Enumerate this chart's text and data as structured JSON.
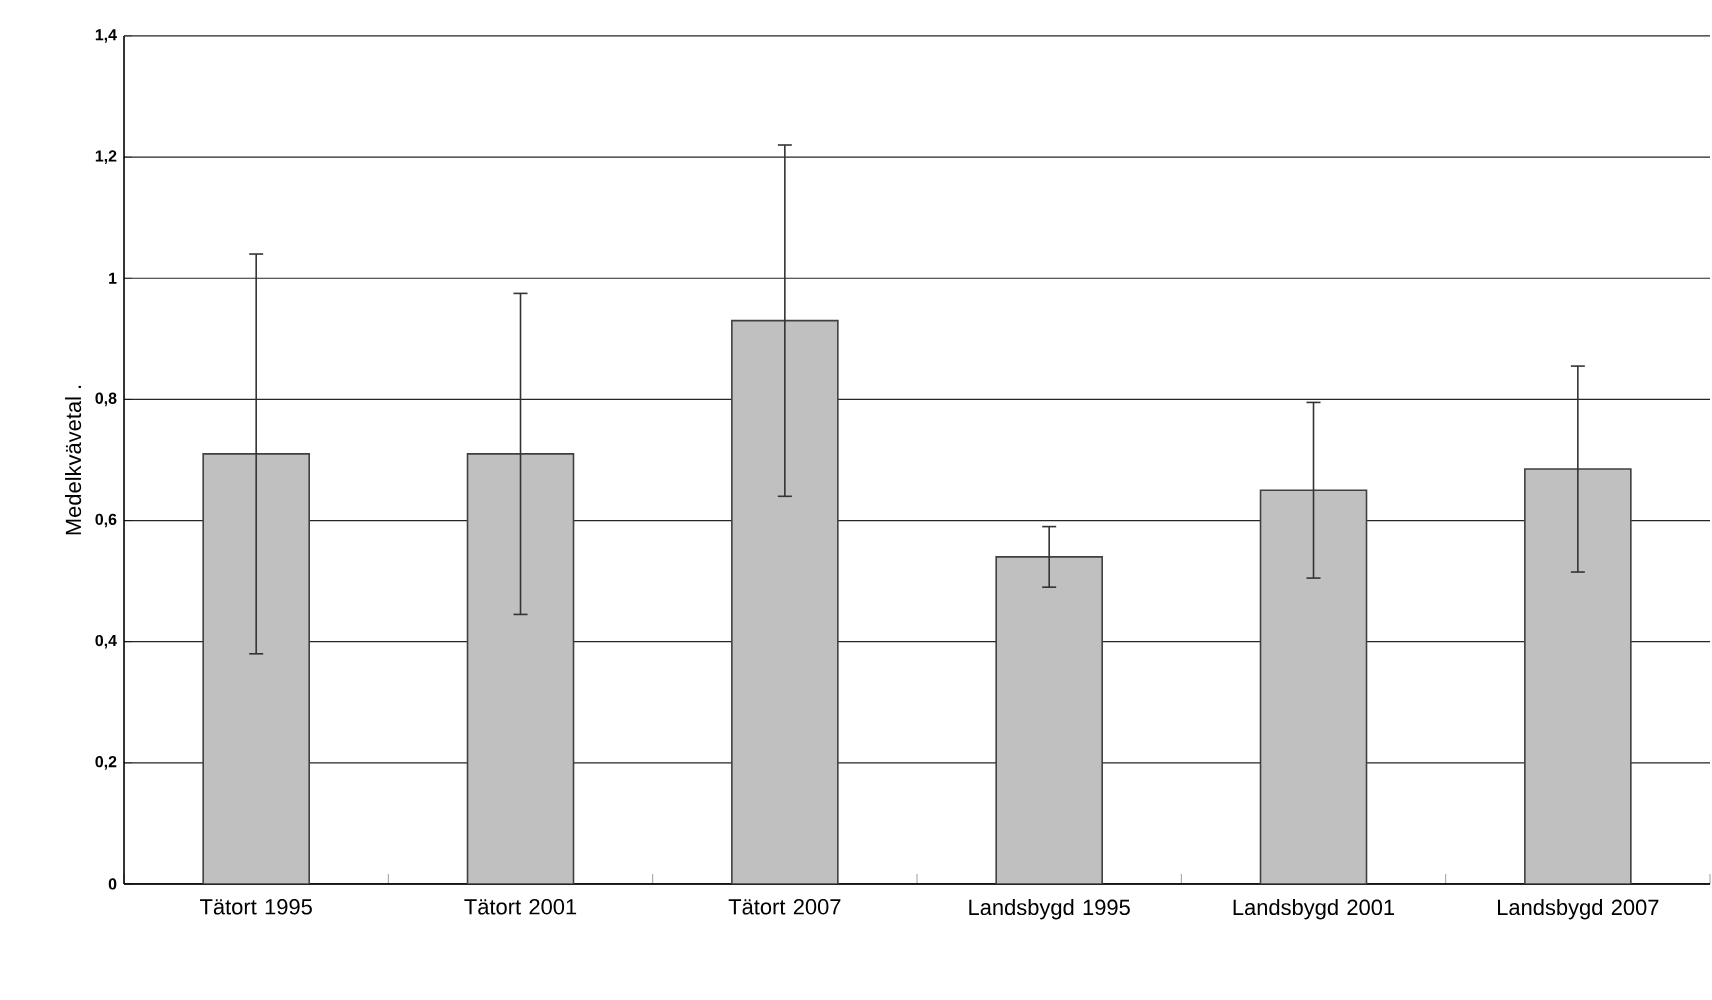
{
  "chart_data": {
    "type": "bar",
    "ylabel": "Medelkvävetal .",
    "categories": [
      "Tätort 1995",
      "Tätort 2001",
      "Tätort 2007",
      "Landsbygd 1995",
      "Landsbygd 2001",
      "Landsbygd 2007"
    ],
    "values": [
      0.71,
      0.71,
      0.93,
      0.54,
      0.65,
      0.685
    ],
    "errors": [
      0.33,
      0.265,
      0.29,
      0.05,
      0.145,
      0.17
    ],
    "color": "#c0c0c0",
    "ylim": [
      0,
      1.4
    ],
    "yticks": [
      {
        "value": 0,
        "label": "0"
      },
      {
        "value": 0.2,
        "label": "0,2"
      },
      {
        "value": 0.4,
        "label": "0,4"
      },
      {
        "value": 0.6,
        "label": "0,6"
      },
      {
        "value": 0.8,
        "label": "0,8"
      },
      {
        "value": 1,
        "label": "1"
      },
      {
        "value": 1.2,
        "label": "1,2"
      },
      {
        "value": 1.4,
        "label": "1,4"
      }
    ],
    "grid": "y"
  }
}
